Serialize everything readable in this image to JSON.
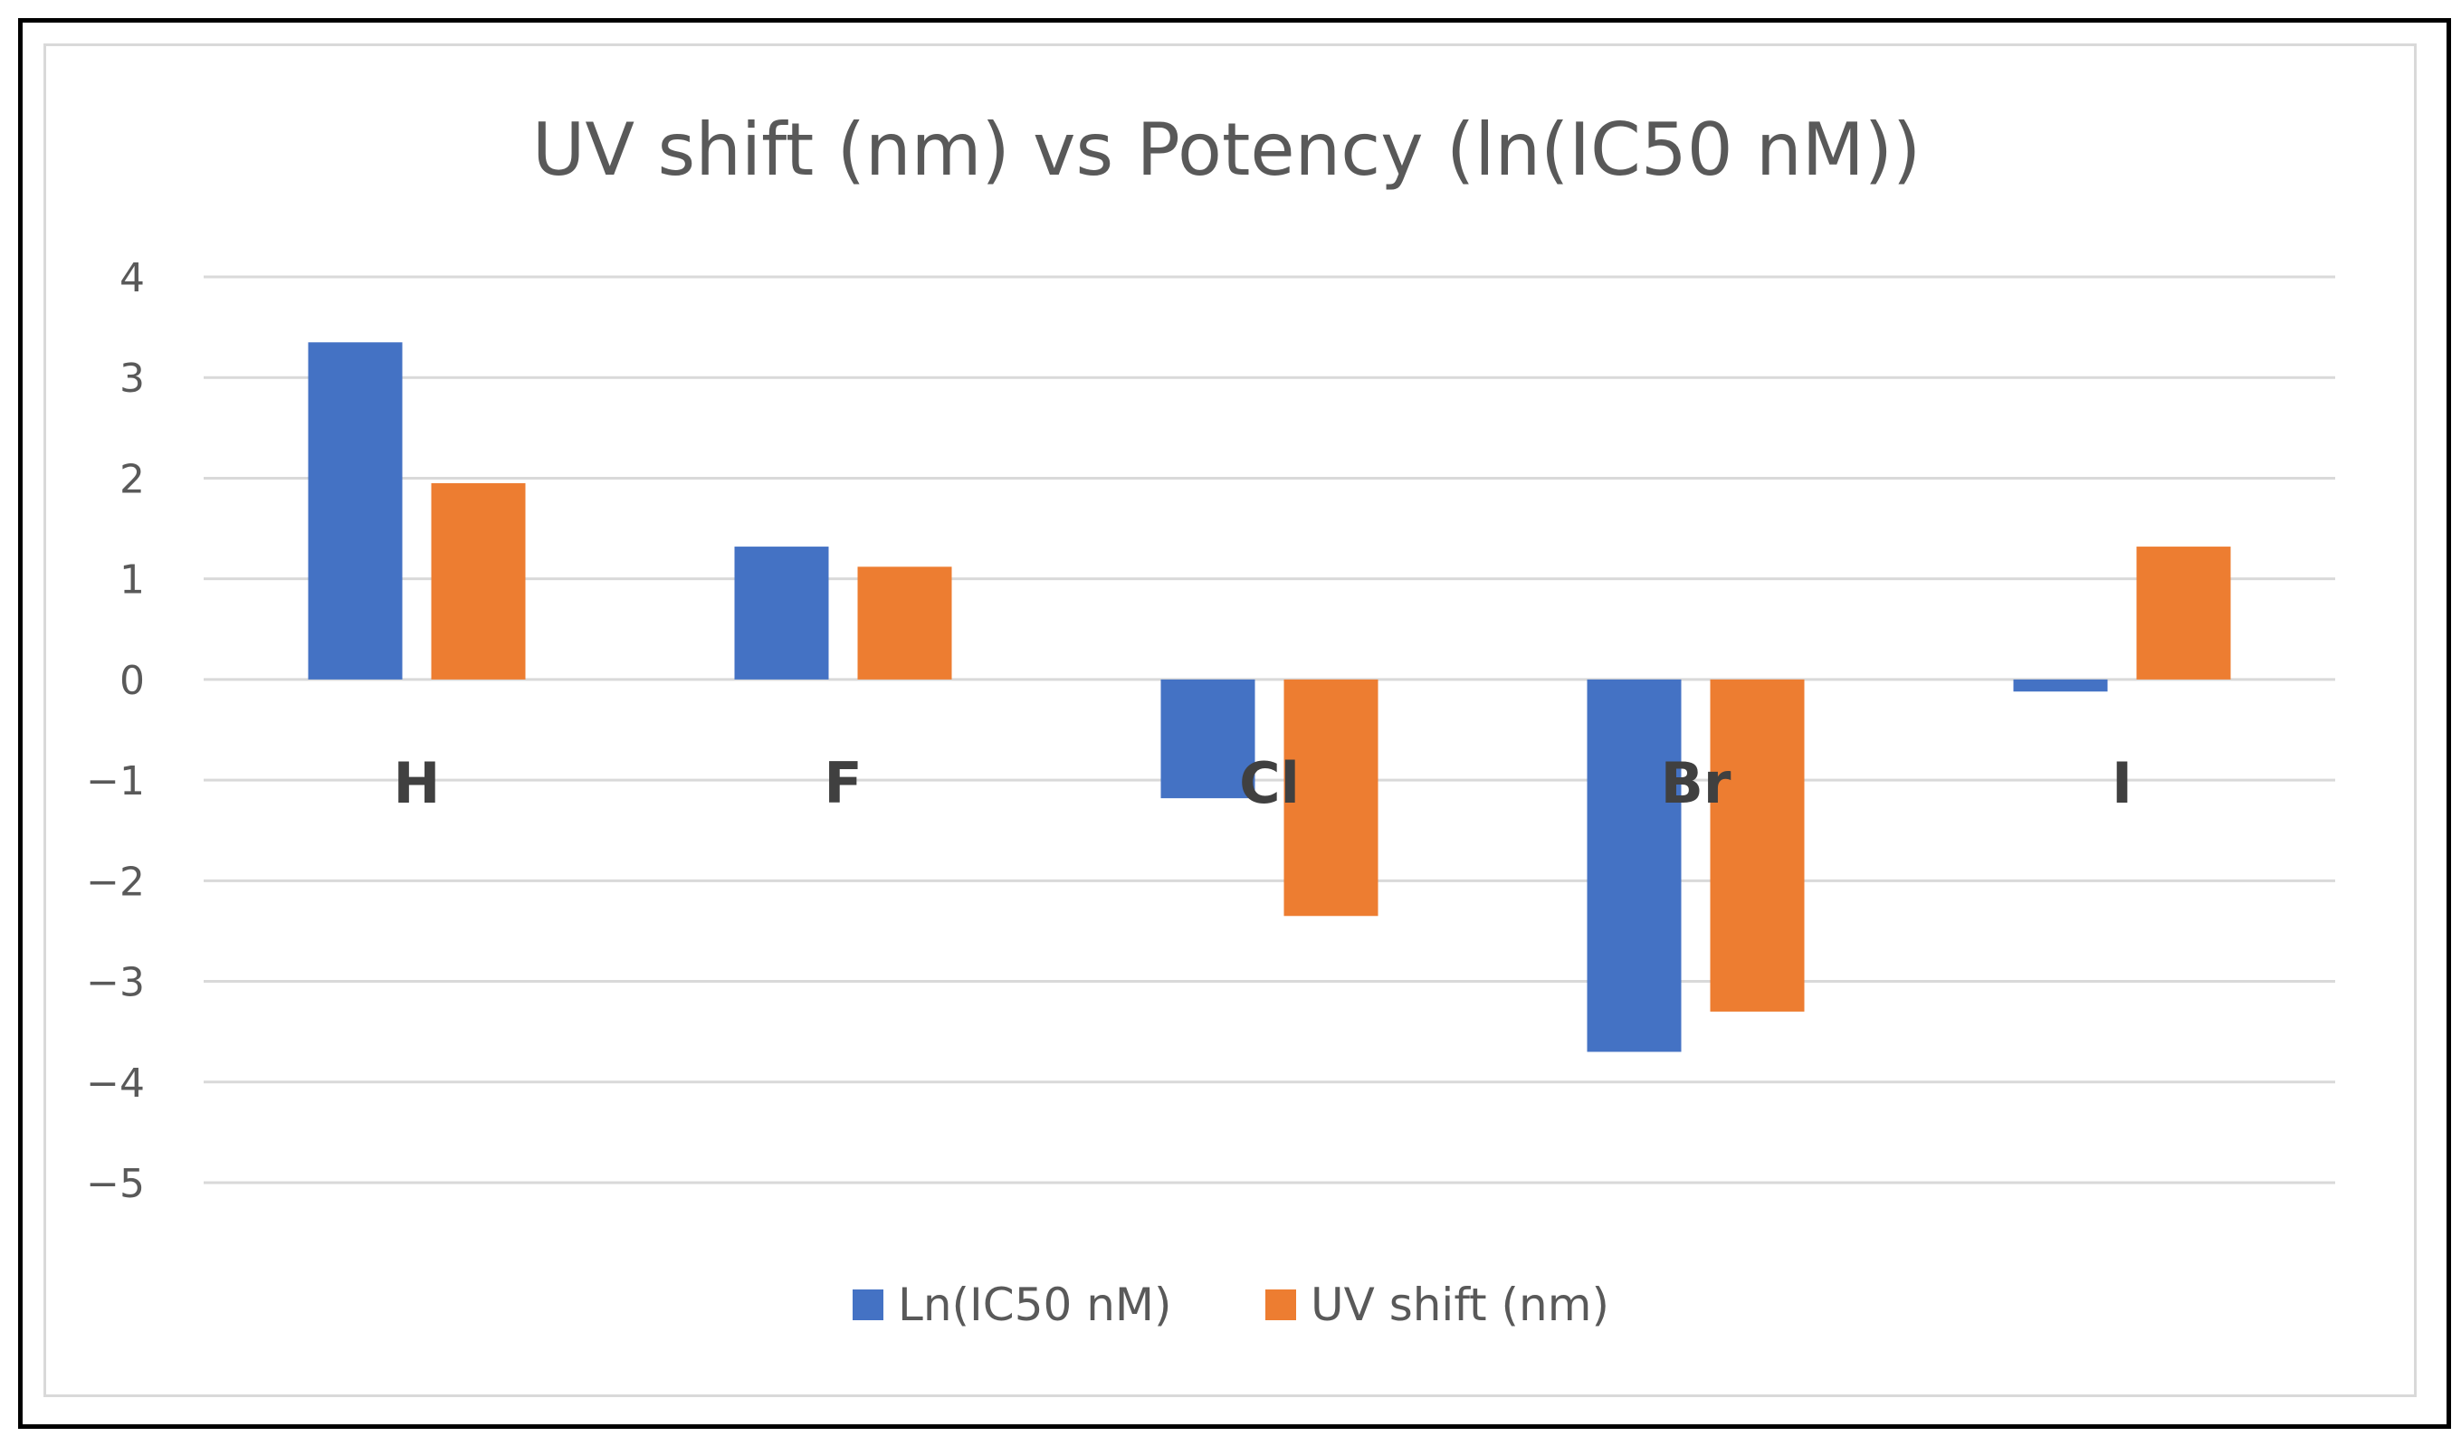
{
  "chart_data": {
    "type": "bar",
    "title": "UV shift (nm) vs Potency (ln(IC50 nM))",
    "categories": [
      "H",
      "F",
      "Cl",
      "Br",
      "I"
    ],
    "series": [
      {
        "name": "Ln(IC50 nM)",
        "color": "#4472c4",
        "values": [
          3.35,
          1.32,
          -1.18,
          -3.7,
          -0.12
        ]
      },
      {
        "name": "UV shift (nm)",
        "color": "#ed7d31",
        "values": [
          1.95,
          1.12,
          -2.35,
          -3.3,
          1.32
        ]
      }
    ],
    "ylim": [
      -5,
      4
    ],
    "yticks": [
      "4",
      "3",
      "2",
      "1",
      "0",
      "−1",
      "−2",
      "−3",
      "−4",
      "−5"
    ],
    "ytick_values": [
      4,
      3,
      2,
      1,
      0,
      -1,
      -2,
      -3,
      -4,
      -5
    ],
    "xlabel": "",
    "ylabel": "",
    "grid": true,
    "legend": "bottom"
  }
}
